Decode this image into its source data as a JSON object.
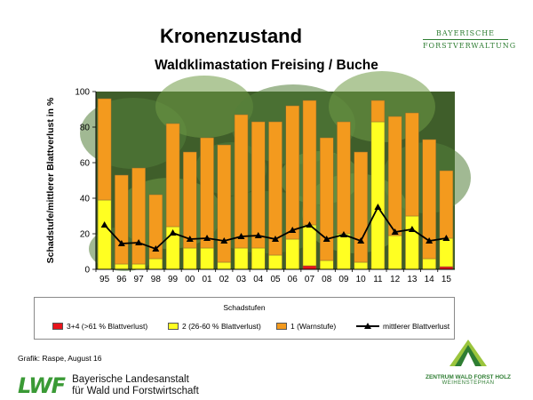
{
  "header": {
    "title": "Kronenzustand",
    "subtitle": "Waldklimastation Freising / Buche",
    "logo_line1": "BAYERISCHE",
    "logo_line2": "FORSTVERWALTUNG"
  },
  "chart_data": {
    "type": "bar",
    "stacked": true,
    "ylabel": "Schadstufe/mittlerer Blattverlust in %",
    "ylim": [
      0,
      100
    ],
    "yticks": [
      0,
      20,
      40,
      60,
      80,
      100
    ],
    "categories": [
      "95",
      "96",
      "97",
      "98",
      "99",
      "00",
      "01",
      "02",
      "03",
      "04",
      "05",
      "06",
      "07",
      "08",
      "09",
      "10",
      "11",
      "12",
      "13",
      "14",
      "15"
    ],
    "series": [
      {
        "name": "3+4 (>61 % Blattverlust)",
        "color": "#e8141c",
        "values": [
          0,
          0,
          0,
          0,
          0,
          0,
          0,
          0,
          0,
          0,
          0,
          0,
          2,
          0,
          0,
          0,
          0,
          0,
          0,
          0,
          1.5
        ]
      },
      {
        "name": "2 (26-60 % Blattverlust)",
        "color": "#ffff22",
        "values": [
          39,
          3,
          3,
          6,
          24,
          12,
          12,
          4,
          12,
          12,
          8,
          17,
          23,
          5,
          20,
          4,
          83,
          19,
          30,
          6,
          16
        ]
      },
      {
        "name": "1 (Warnstufe)",
        "color": "#f39a1e",
        "values": [
          57,
          50,
          54,
          36,
          58,
          54,
          62,
          66,
          75,
          71,
          75,
          75,
          70,
          69,
          63,
          62,
          12,
          67,
          58,
          67,
          38
        ]
      }
    ],
    "line": {
      "name": "mittlerer Blattverlust",
      "color": "#000000",
      "values": [
        25,
        14.5,
        15,
        11.5,
        20.5,
        17,
        17.5,
        16,
        18.5,
        19,
        17,
        22,
        25,
        17,
        19.5,
        16,
        35,
        21,
        22.5,
        16,
        17.5
      ]
    },
    "legend_title": "Schadstufen",
    "legend_position": "bottom",
    "grid": false
  },
  "footer": {
    "credit": "Grafik: Raspe, August 16",
    "lwf_mark": "LWF",
    "lwf_line1": "Bayerische Landesanstalt",
    "lwf_line2": "für Wald und Forstwirtschaft",
    "zwf_name": "ZENTRUM WALD FORST HOLZ",
    "zwf_sub": "WEIHENSTEPHAN"
  }
}
